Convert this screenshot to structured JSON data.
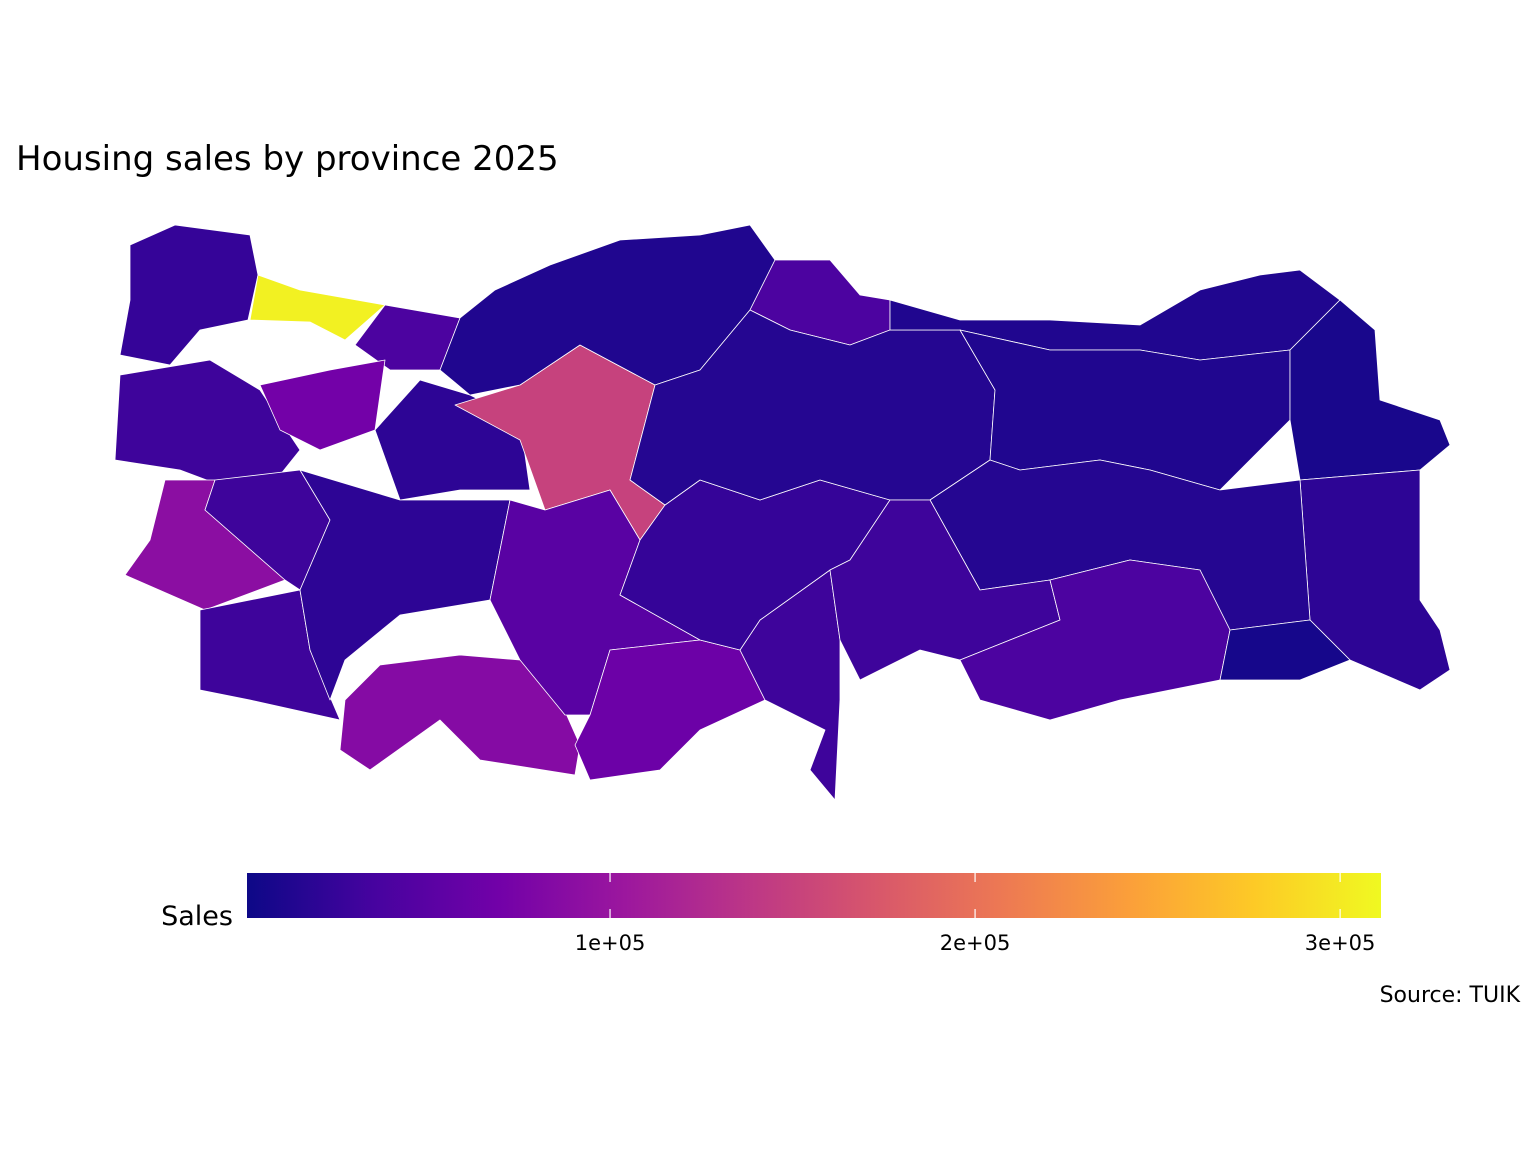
{
  "chart_data": {
    "type": "choropleth",
    "title": "Housing sales by province 2025",
    "legend_title": "Sales",
    "caption": "Source: TUIK",
    "values": [
      25000,
      305000,
      40000,
      30000,
      70000,
      20000,
      150000,
      90000,
      30000,
      30000,
      20000,
      85000,
      50000,
      65000,
      30000,
      25000,
      12000,
      40000,
      15000,
      12000,
      12000,
      8000,
      20000,
      15000,
      30000,
      40000,
      6000
    ],
    "clim": [
      550,
      311200
    ],
    "ticks": [
      {
        "value": 100000,
        "label": "1e+05"
      },
      {
        "value": 200000,
        "label": "2e+05"
      },
      {
        "value": 300000,
        "label": "3e+05"
      }
    ],
    "colorscale": [
      "#0d0887",
      "#46039f",
      "#7201a8",
      "#9c179e",
      "#bd3786",
      "#d8576b",
      "#ed7953",
      "#fb9f3a",
      "#fdca26",
      "#f0f921"
    ],
    "border_color": "#ffffff"
  }
}
